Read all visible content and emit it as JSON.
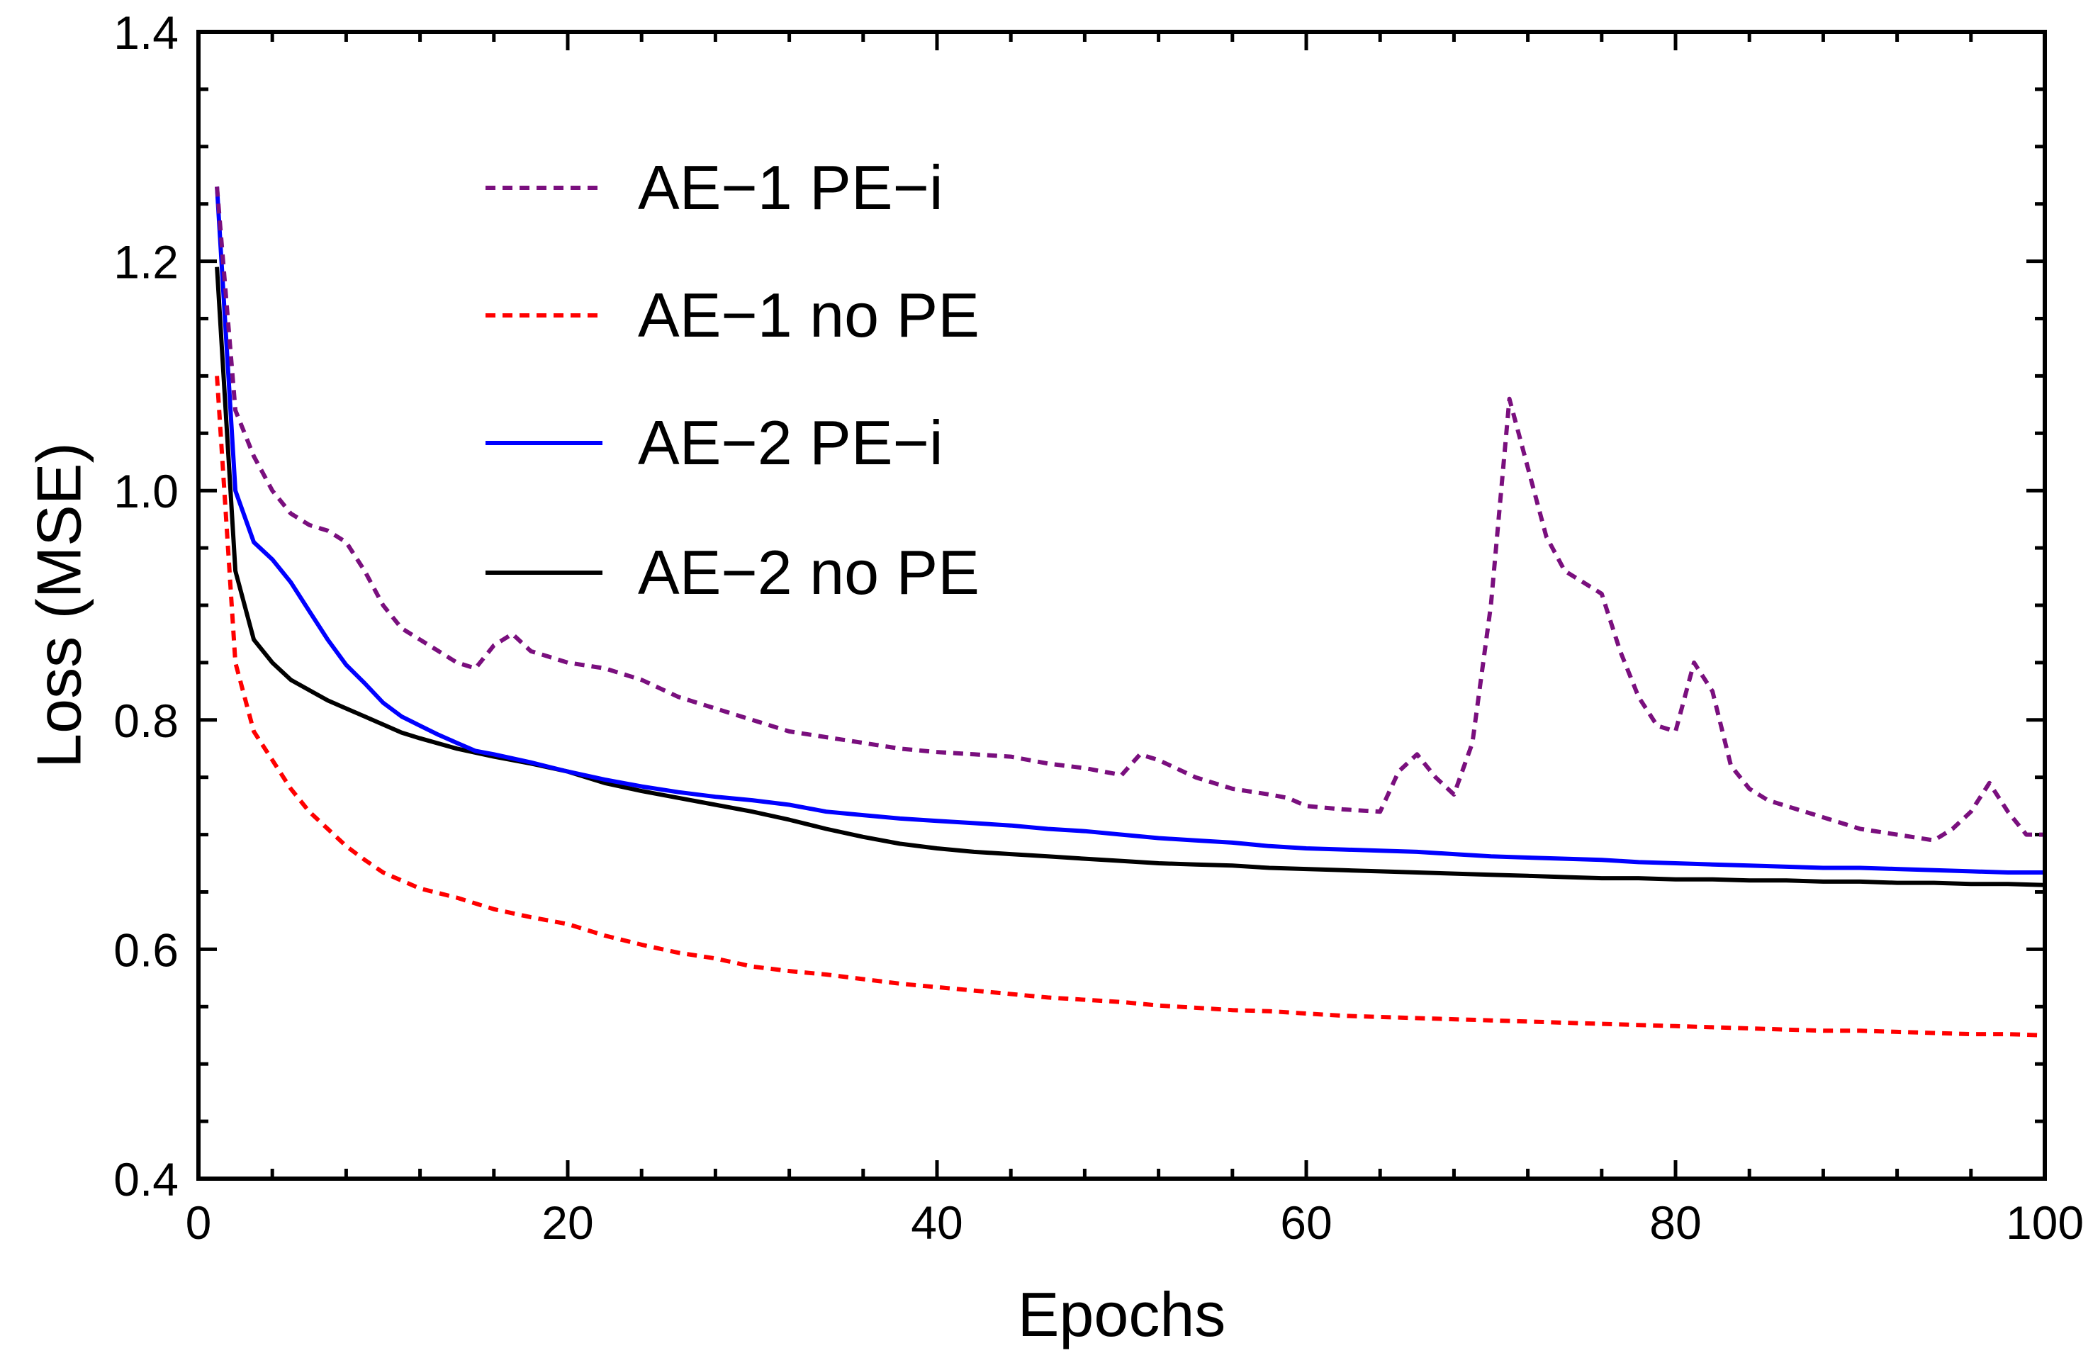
{
  "chart_data": {
    "type": "line",
    "title": "",
    "xlabel": "Epochs",
    "ylabel": "Loss (MSE)",
    "xlim": [
      0,
      100
    ],
    "ylim": [
      0.4,
      1.4
    ],
    "xticks": [
      0,
      20,
      40,
      60,
      80,
      100
    ],
    "xtick_labels": [
      "0",
      "20",
      "40",
      "60",
      "80",
      "100"
    ],
    "yticks": [
      0.4,
      0.6,
      0.8,
      1.0,
      1.2,
      1.4
    ],
    "ytick_labels": [
      "0.4",
      "0.6",
      "0.8",
      "1.0",
      "1.2",
      "1.4"
    ],
    "legend_position": "top-left",
    "series": [
      {
        "name": "AE−1 PE−i",
        "color": "#7a0f7e",
        "style": "dashed",
        "points": [
          [
            1,
            1.265
          ],
          [
            2,
            1.07
          ],
          [
            3,
            1.03
          ],
          [
            4,
            1.0
          ],
          [
            5,
            0.98
          ],
          [
            6,
            0.97
          ],
          [
            7,
            0.965
          ],
          [
            8,
            0.955
          ],
          [
            9,
            0.93
          ],
          [
            10,
            0.9
          ],
          [
            11,
            0.88
          ],
          [
            12,
            0.87
          ],
          [
            13,
            0.86
          ],
          [
            14,
            0.85
          ],
          [
            15,
            0.845
          ],
          [
            16,
            0.865
          ],
          [
            17,
            0.875
          ],
          [
            18,
            0.86
          ],
          [
            19,
            0.855
          ],
          [
            20,
            0.85
          ],
          [
            22,
            0.845
          ],
          [
            24,
            0.835
          ],
          [
            26,
            0.82
          ],
          [
            28,
            0.81
          ],
          [
            30,
            0.8
          ],
          [
            32,
            0.79
          ],
          [
            34,
            0.785
          ],
          [
            36,
            0.78
          ],
          [
            38,
            0.775
          ],
          [
            40,
            0.772
          ],
          [
            42,
            0.77
          ],
          [
            44,
            0.768
          ],
          [
            46,
            0.762
          ],
          [
            48,
            0.758
          ],
          [
            50,
            0.752
          ],
          [
            51,
            0.77
          ],
          [
            52,
            0.765
          ],
          [
            54,
            0.75
          ],
          [
            56,
            0.74
          ],
          [
            58,
            0.735
          ],
          [
            59,
            0.732
          ],
          [
            60,
            0.725
          ],
          [
            62,
            0.722
          ],
          [
            64,
            0.72
          ],
          [
            65,
            0.755
          ],
          [
            66,
            0.77
          ],
          [
            67,
            0.75
          ],
          [
            68,
            0.735
          ],
          [
            69,
            0.78
          ],
          [
            70,
            0.9
          ],
          [
            71,
            1.08
          ],
          [
            72,
            1.02
          ],
          [
            73,
            0.96
          ],
          [
            74,
            0.93
          ],
          [
            75,
            0.92
          ],
          [
            76,
            0.91
          ],
          [
            77,
            0.86
          ],
          [
            78,
            0.82
          ],
          [
            79,
            0.795
          ],
          [
            80,
            0.79
          ],
          [
            81,
            0.85
          ],
          [
            82,
            0.825
          ],
          [
            83,
            0.76
          ],
          [
            84,
            0.74
          ],
          [
            85,
            0.73
          ],
          [
            86,
            0.725
          ],
          [
            88,
            0.715
          ],
          [
            90,
            0.705
          ],
          [
            92,
            0.7
          ],
          [
            94,
            0.695
          ],
          [
            95,
            0.705
          ],
          [
            96,
            0.72
          ],
          [
            97,
            0.745
          ],
          [
            98,
            0.72
          ],
          [
            99,
            0.7
          ],
          [
            100,
            0.7
          ]
        ]
      },
      {
        "name": "AE−1 no PE",
        "color": "#ff0000",
        "style": "dashed",
        "points": [
          [
            1,
            1.1
          ],
          [
            2,
            0.85
          ],
          [
            3,
            0.79
          ],
          [
            4,
            0.765
          ],
          [
            5,
            0.74
          ],
          [
            6,
            0.72
          ],
          [
            7,
            0.705
          ],
          [
            8,
            0.69
          ],
          [
            9,
            0.678
          ],
          [
            10,
            0.667
          ],
          [
            11,
            0.66
          ],
          [
            12,
            0.653
          ],
          [
            14,
            0.645
          ],
          [
            16,
            0.635
          ],
          [
            18,
            0.628
          ],
          [
            20,
            0.622
          ],
          [
            22,
            0.612
          ],
          [
            24,
            0.604
          ],
          [
            26,
            0.597
          ],
          [
            28,
            0.592
          ],
          [
            30,
            0.585
          ],
          [
            32,
            0.581
          ],
          [
            34,
            0.578
          ],
          [
            36,
            0.574
          ],
          [
            38,
            0.57
          ],
          [
            40,
            0.567
          ],
          [
            42,
            0.564
          ],
          [
            44,
            0.561
          ],
          [
            46,
            0.558
          ],
          [
            48,
            0.556
          ],
          [
            50,
            0.554
          ],
          [
            52,
            0.551
          ],
          [
            54,
            0.549
          ],
          [
            56,
            0.547
          ],
          [
            58,
            0.546
          ],
          [
            60,
            0.544
          ],
          [
            62,
            0.542
          ],
          [
            64,
            0.541
          ],
          [
            66,
            0.54
          ],
          [
            68,
            0.539
          ],
          [
            70,
            0.538
          ],
          [
            72,
            0.537
          ],
          [
            74,
            0.536
          ],
          [
            76,
            0.535
          ],
          [
            78,
            0.534
          ],
          [
            80,
            0.533
          ],
          [
            82,
            0.532
          ],
          [
            84,
            0.531
          ],
          [
            86,
            0.53
          ],
          [
            88,
            0.529
          ],
          [
            90,
            0.529
          ],
          [
            92,
            0.528
          ],
          [
            94,
            0.527
          ],
          [
            96,
            0.526
          ],
          [
            98,
            0.526
          ],
          [
            100,
            0.525
          ]
        ]
      },
      {
        "name": "AE−2 PE−i",
        "color": "#0000ff",
        "style": "solid",
        "points": [
          [
            1,
            1.265
          ],
          [
            2,
            1.0
          ],
          [
            3,
            0.955
          ],
          [
            4,
            0.94
          ],
          [
            5,
            0.92
          ],
          [
            6,
            0.895
          ],
          [
            7,
            0.87
          ],
          [
            8,
            0.848
          ],
          [
            9,
            0.832
          ],
          [
            10,
            0.815
          ],
          [
            11,
            0.803
          ],
          [
            12,
            0.795
          ],
          [
            13,
            0.787
          ],
          [
            14,
            0.78
          ],
          [
            15,
            0.773
          ],
          [
            16,
            0.77
          ],
          [
            18,
            0.763
          ],
          [
            20,
            0.755
          ],
          [
            22,
            0.748
          ],
          [
            24,
            0.742
          ],
          [
            26,
            0.737
          ],
          [
            28,
            0.733
          ],
          [
            30,
            0.73
          ],
          [
            32,
            0.726
          ],
          [
            34,
            0.72
          ],
          [
            36,
            0.717
          ],
          [
            38,
            0.714
          ],
          [
            40,
            0.712
          ],
          [
            42,
            0.71
          ],
          [
            44,
            0.708
          ],
          [
            46,
            0.705
          ],
          [
            48,
            0.703
          ],
          [
            50,
            0.7
          ],
          [
            52,
            0.697
          ],
          [
            54,
            0.695
          ],
          [
            56,
            0.693
          ],
          [
            58,
            0.69
          ],
          [
            60,
            0.688
          ],
          [
            62,
            0.687
          ],
          [
            64,
            0.686
          ],
          [
            66,
            0.685
          ],
          [
            68,
            0.683
          ],
          [
            70,
            0.681
          ],
          [
            72,
            0.68
          ],
          [
            74,
            0.679
          ],
          [
            76,
            0.678
          ],
          [
            78,
            0.676
          ],
          [
            80,
            0.675
          ],
          [
            82,
            0.674
          ],
          [
            84,
            0.673
          ],
          [
            86,
            0.672
          ],
          [
            88,
            0.671
          ],
          [
            90,
            0.671
          ],
          [
            92,
            0.67
          ],
          [
            94,
            0.669
          ],
          [
            96,
            0.668
          ],
          [
            98,
            0.667
          ],
          [
            100,
            0.667
          ]
        ]
      },
      {
        "name": "AE−2 no PE",
        "color": "#000000",
        "style": "solid",
        "points": [
          [
            1,
            1.195
          ],
          [
            2,
            0.93
          ],
          [
            3,
            0.87
          ],
          [
            4,
            0.85
          ],
          [
            5,
            0.835
          ],
          [
            6,
            0.826
          ],
          [
            7,
            0.817
          ],
          [
            8,
            0.81
          ],
          [
            9,
            0.803
          ],
          [
            10,
            0.796
          ],
          [
            11,
            0.789
          ],
          [
            12,
            0.784
          ],
          [
            14,
            0.775
          ],
          [
            16,
            0.768
          ],
          [
            18,
            0.762
          ],
          [
            20,
            0.755
          ],
          [
            22,
            0.745
          ],
          [
            24,
            0.738
          ],
          [
            26,
            0.732
          ],
          [
            28,
            0.726
          ],
          [
            30,
            0.72
          ],
          [
            32,
            0.713
          ],
          [
            34,
            0.705
          ],
          [
            36,
            0.698
          ],
          [
            38,
            0.692
          ],
          [
            40,
            0.688
          ],
          [
            42,
            0.685
          ],
          [
            44,
            0.683
          ],
          [
            46,
            0.681
          ],
          [
            48,
            0.679
          ],
          [
            50,
            0.677
          ],
          [
            52,
            0.675
          ],
          [
            54,
            0.674
          ],
          [
            56,
            0.673
          ],
          [
            58,
            0.671
          ],
          [
            60,
            0.67
          ],
          [
            62,
            0.669
          ],
          [
            64,
            0.668
          ],
          [
            66,
            0.667
          ],
          [
            68,
            0.666
          ],
          [
            70,
            0.665
          ],
          [
            72,
            0.664
          ],
          [
            74,
            0.663
          ],
          [
            76,
            0.662
          ],
          [
            78,
            0.662
          ],
          [
            80,
            0.661
          ],
          [
            82,
            0.661
          ],
          [
            84,
            0.66
          ],
          [
            86,
            0.66
          ],
          [
            88,
            0.659
          ],
          [
            90,
            0.659
          ],
          [
            92,
            0.658
          ],
          [
            94,
            0.658
          ],
          [
            96,
            0.657
          ],
          [
            98,
            0.657
          ],
          [
            100,
            0.656
          ]
        ]
      }
    ]
  }
}
